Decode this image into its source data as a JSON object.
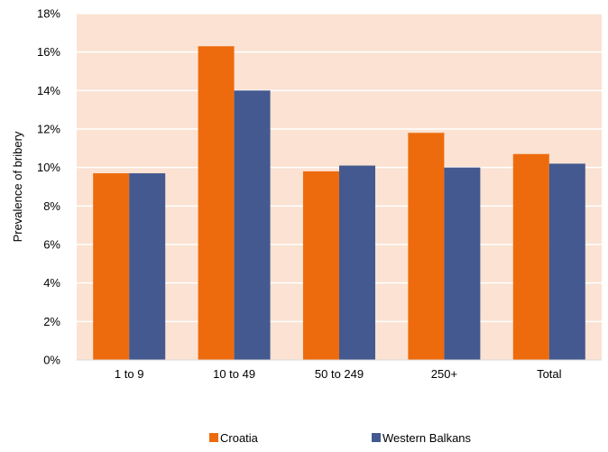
{
  "chart_data": {
    "type": "bar",
    "title": "",
    "xlabel": "",
    "ylabel": "Prevalence of bribery",
    "categories": [
      "1 to 9",
      "10 to 49",
      "50 to 249",
      "250+",
      "Total"
    ],
    "series": [
      {
        "name": "Croatia",
        "values": [
          9.7,
          16.3,
          9.8,
          11.8,
          10.7
        ],
        "color": "#ED6B0C"
      },
      {
        "name": "Western Balkans",
        "values": [
          9.7,
          14.0,
          10.1,
          10.0,
          10.2
        ],
        "color": "#44598F"
      }
    ],
    "ylim": [
      0,
      18
    ],
    "ytick_step": 2,
    "y_tick_format": "percent",
    "grid": true,
    "plot_background": "#FBE2D2",
    "gridline_color": "#FFFFFF",
    "legend_position": "bottom"
  }
}
